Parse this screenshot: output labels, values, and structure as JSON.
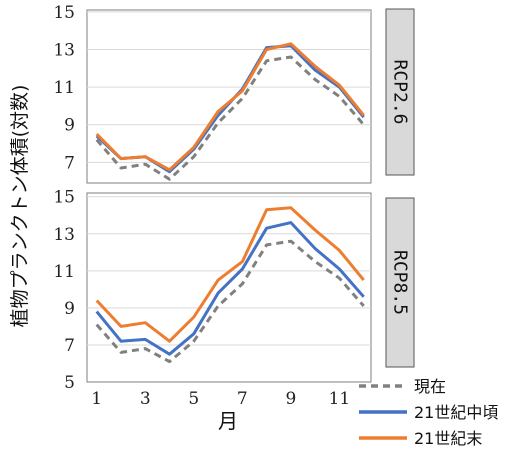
{
  "chart_data": {
    "type": "line",
    "ylabel": "植物プランクトン体積(対数)",
    "xlabel": "月",
    "x": [
      1,
      2,
      3,
      4,
      5,
      6,
      7,
      8,
      9,
      10,
      11,
      12
    ],
    "xticks": [
      1,
      3,
      5,
      7,
      9,
      11
    ],
    "legend": [
      "現在",
      "21世紀中頃",
      "21世紀末"
    ],
    "legend_placement": "bottom-right",
    "colors": {
      "現在": "#808080",
      "21世紀中頃": "#4472c4",
      "21世紀末": "#ed7d31"
    },
    "panels": [
      {
        "strip": "RCP2.6",
        "ylim": [
          6,
          15
        ],
        "yticks": [
          7,
          9,
          11,
          13,
          15
        ],
        "series": [
          {
            "name": "現在",
            "values": [
              8.2,
              6.7,
              6.9,
              6.1,
              7.3,
              9.1,
              10.4,
              12.4,
              12.6,
              11.4,
              10.5,
              9.0
            ]
          },
          {
            "name": "21世紀中頃",
            "values": [
              8.4,
              7.2,
              7.3,
              6.5,
              7.7,
              9.5,
              10.9,
              13.1,
              13.2,
              11.9,
              11.0,
              9.4
            ]
          },
          {
            "name": "21世紀末",
            "values": [
              8.5,
              7.2,
              7.3,
              6.6,
              7.8,
              9.7,
              10.8,
              13.0,
              13.3,
              12.1,
              11.1,
              9.5
            ]
          }
        ]
      },
      {
        "strip": "RCP8.5",
        "ylim": [
          5,
          15
        ],
        "yticks": [
          5,
          7,
          9,
          11,
          13,
          15
        ],
        "series": [
          {
            "name": "現在",
            "values": [
              8.1,
              6.6,
              6.8,
              6.1,
              7.2,
              9.1,
              10.3,
              12.4,
              12.6,
              11.5,
              10.6,
              9.1
            ]
          },
          {
            "name": "21世紀中頃",
            "values": [
              8.8,
              7.2,
              7.3,
              6.5,
              7.6,
              9.8,
              11.1,
              13.3,
              13.6,
              12.2,
              11.1,
              9.6
            ]
          },
          {
            "name": "21世紀末",
            "values": [
              9.4,
              8.0,
              8.2,
              7.2,
              8.5,
              10.5,
              11.5,
              14.3,
              14.4,
              13.2,
              12.1,
              10.5
            ]
          }
        ]
      }
    ]
  }
}
